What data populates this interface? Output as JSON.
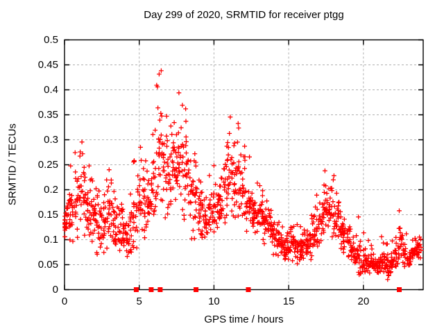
{
  "chart_data": {
    "type": "scatter",
    "title": "Day 299 of 2020, SRMTID for receiver ptgg",
    "xlabel": "GPS time / hours",
    "ylabel": "SRMTID / TECUs",
    "xlim": [
      0,
      24
    ],
    "ylim": [
      0,
      0.5
    ],
    "xticks": [
      0,
      5,
      10,
      15,
      20
    ],
    "xtick_labels": [
      "0",
      "5",
      "10",
      "15",
      "20"
    ],
    "yticks": [
      0,
      0.05,
      0.1,
      0.15,
      0.2,
      0.25,
      0.3,
      0.35,
      0.4,
      0.45,
      0.5
    ],
    "ytick_labels": [
      "0",
      "0.05",
      "0.1",
      "0.15",
      "0.2",
      "0.25",
      "0.3",
      "0.35",
      "0.4",
      "0.45",
      "0.5"
    ],
    "grid": {
      "shown": true,
      "style": "dashed"
    },
    "legend": "none",
    "colors": {
      "points": "#ff0000",
      "axes": "#000000",
      "grid": "#b0b0b0",
      "text": "#000000",
      "background": "#ffffff"
    },
    "series": [
      {
        "name": "SRMTID values",
        "marker": "plus",
        "representation": "envelope_scatter",
        "bin_hours": 0.25,
        "points_per_bin": 16,
        "t": [
          0,
          0.25,
          0.5,
          0.75,
          1,
          1.25,
          1.5,
          1.75,
          2,
          2.25,
          2.5,
          2.75,
          3,
          3.25,
          3.5,
          3.75,
          4,
          4.25,
          4.5,
          4.75,
          5,
          5.25,
          5.5,
          5.75,
          6,
          6.25,
          6.5,
          6.75,
          7,
          7.25,
          7.5,
          7.75,
          8,
          8.25,
          8.5,
          8.75,
          9,
          9.25,
          9.5,
          9.75,
          10,
          10.25,
          10.5,
          10.75,
          11,
          11.25,
          11.5,
          11.75,
          12,
          12.25,
          12.5,
          12.75,
          13,
          13.25,
          13.5,
          13.75,
          14,
          14.25,
          14.5,
          14.75,
          15,
          15.25,
          15.5,
          15.75,
          16,
          16.25,
          16.5,
          16.75,
          17,
          17.25,
          17.5,
          17.75,
          18,
          18.25,
          18.5,
          18.75,
          19,
          19.25,
          19.5,
          19.75,
          20,
          20.25,
          20.5,
          20.75,
          21,
          21.25,
          21.5,
          21.75,
          22,
          22.25,
          22.5,
          22.75,
          23,
          23.25,
          23.5,
          23.75
        ],
        "lo": [
          0.09,
          0.09,
          0.08,
          0.1,
          0.1,
          0.1,
          0.1,
          0.09,
          0.08,
          0.07,
          0.06,
          0.07,
          0.07,
          0.07,
          0.06,
          0.05,
          0.05,
          0.05,
          0.06,
          0.08,
          0.1,
          0.1,
          0.11,
          0.13,
          0.14,
          0.15,
          0.16,
          0.14,
          0.12,
          0.13,
          0.14,
          0.14,
          0.12,
          0.12,
          0.1,
          0.1,
          0.08,
          0.07,
          0.07,
          0.09,
          0.1,
          0.1,
          0.11,
          0.13,
          0.14,
          0.12,
          0.12,
          0.12,
          0.11,
          0.1,
          0.1,
          0.09,
          0.1,
          0.1,
          0.09,
          0.08,
          0.07,
          0.06,
          0.06,
          0.05,
          0.05,
          0.05,
          0.05,
          0.05,
          0.05,
          0.06,
          0.06,
          0.07,
          0.08,
          0.09,
          0.1,
          0.1,
          0.1,
          0.09,
          0.08,
          0.07,
          0.06,
          0.05,
          0.04,
          0.03,
          0.03,
          0.03,
          0.03,
          0.03,
          0.03,
          0.03,
          0.03,
          0.02,
          0.03,
          0.04,
          0.05,
          0.04,
          0.04,
          0.05,
          0.05,
          0.06
        ],
        "med": [
          0.13,
          0.15,
          0.16,
          0.18,
          0.19,
          0.2,
          0.18,
          0.16,
          0.15,
          0.14,
          0.13,
          0.14,
          0.15,
          0.14,
          0.13,
          0.12,
          0.11,
          0.1,
          0.12,
          0.15,
          0.17,
          0.16,
          0.17,
          0.19,
          0.22,
          0.26,
          0.28,
          0.25,
          0.22,
          0.23,
          0.25,
          0.26,
          0.24,
          0.22,
          0.2,
          0.18,
          0.16,
          0.14,
          0.13,
          0.15,
          0.16,
          0.17,
          0.18,
          0.22,
          0.24,
          0.21,
          0.2,
          0.21,
          0.19,
          0.17,
          0.16,
          0.15,
          0.15,
          0.15,
          0.14,
          0.13,
          0.11,
          0.1,
          0.09,
          0.08,
          0.08,
          0.09,
          0.09,
          0.08,
          0.08,
          0.09,
          0.1,
          0.11,
          0.12,
          0.14,
          0.16,
          0.16,
          0.15,
          0.14,
          0.12,
          0.11,
          0.1,
          0.08,
          0.07,
          0.06,
          0.06,
          0.055,
          0.05,
          0.05,
          0.05,
          0.055,
          0.055,
          0.05,
          0.06,
          0.07,
          0.1,
          0.07,
          0.06,
          0.07,
          0.08,
          0.09
        ],
        "hi": [
          0.17,
          0.22,
          0.25,
          0.28,
          0.3,
          0.32,
          0.29,
          0.25,
          0.23,
          0.22,
          0.21,
          0.23,
          0.25,
          0.24,
          0.22,
          0.19,
          0.17,
          0.16,
          0.2,
          0.28,
          0.31,
          0.26,
          0.28,
          0.33,
          0.36,
          0.44,
          0.47,
          0.38,
          0.33,
          0.36,
          0.42,
          0.4,
          0.37,
          0.33,
          0.3,
          0.28,
          0.25,
          0.22,
          0.2,
          0.24,
          0.26,
          0.28,
          0.31,
          0.41,
          0.4,
          0.33,
          0.3,
          0.36,
          0.3,
          0.28,
          0.24,
          0.22,
          0.22,
          0.21,
          0.2,
          0.18,
          0.16,
          0.14,
          0.13,
          0.12,
          0.12,
          0.13,
          0.14,
          0.13,
          0.12,
          0.13,
          0.15,
          0.17,
          0.19,
          0.22,
          0.24,
          0.24,
          0.23,
          0.21,
          0.18,
          0.16,
          0.14,
          0.12,
          0.13,
          0.19,
          0.15,
          0.1,
          0.09,
          0.08,
          0.09,
          0.11,
          0.1,
          0.09,
          0.1,
          0.13,
          0.16,
          0.12,
          0.1,
          0.1,
          0.11,
          0.12
        ]
      },
      {
        "name": "zero-value flags",
        "marker": "filled-square",
        "x": [
          4.8,
          5.8,
          6.4,
          8.8,
          12.3,
          22.4
        ],
        "y": [
          0,
          0,
          0,
          0,
          0,
          0
        ]
      }
    ]
  }
}
